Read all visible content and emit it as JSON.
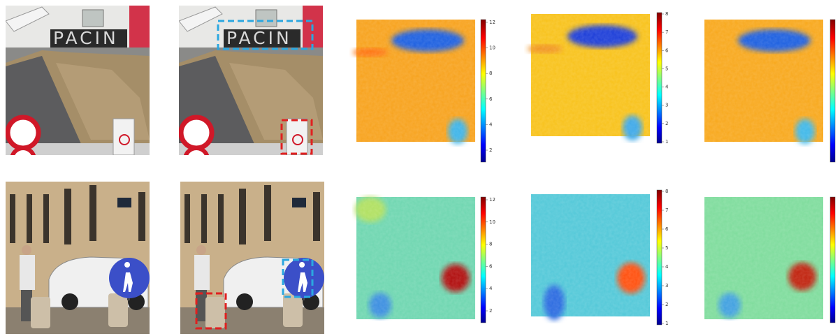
{
  "top_row": {
    "photo_text": "PACIN",
    "colorbars": [
      {
        "ticks": [
          12,
          10,
          8,
          6,
          4,
          2
        ]
      },
      {
        "ticks": [
          8,
          7,
          6,
          5,
          4,
          3,
          2,
          1
        ]
      }
    ]
  },
  "bottom_row": {
    "colorbars": [
      {
        "ticks": [
          12,
          10,
          8,
          6,
          4,
          2
        ]
      },
      {
        "ticks": [
          8,
          7,
          6,
          5,
          4,
          3,
          2,
          1
        ]
      }
    ]
  }
}
